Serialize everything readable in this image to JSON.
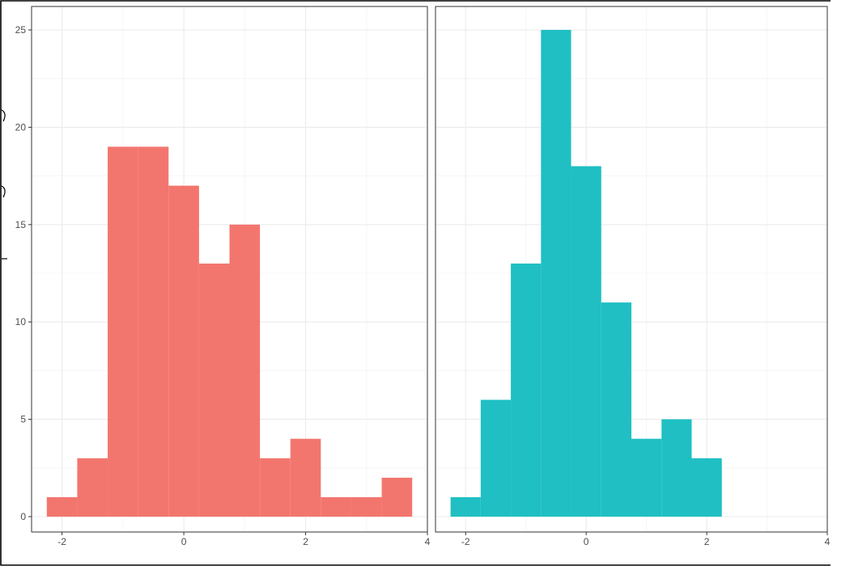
{
  "chart_data": {
    "type": "bar",
    "layout": "two facet panels side by side, shared y axis",
    "theme": "white background, light gray grid, thin dark panel border",
    "grid": true,
    "legend": "none",
    "bin_width": 0.5,
    "xlim": [
      -2.5,
      4
    ],
    "ylim": [
      0,
      25
    ],
    "x_ticks": [
      -2,
      0,
      2,
      4
    ],
    "y_ticks": [
      0,
      5,
      10,
      15,
      20,
      25
    ],
    "x_tick_labels": [
      "-2",
      "0",
      "2",
      "4"
    ],
    "y_tick_labels": [
      "0",
      "5",
      "10",
      "15",
      "20",
      "25"
    ],
    "title": "",
    "xlabel": "",
    "ylabel": "",
    "series": [
      {
        "color": "#F3766E",
        "bins": [
          {
            "x0": -2.25,
            "x1": -1.75,
            "count": 1
          },
          {
            "x0": -1.75,
            "x1": -1.25,
            "count": 3
          },
          {
            "x0": -1.25,
            "x1": -0.75,
            "count": 19
          },
          {
            "x0": -0.75,
            "x1": -0.25,
            "count": 19
          },
          {
            "x0": -0.25,
            "x1": 0.25,
            "count": 17
          },
          {
            "x0": 0.25,
            "x1": 0.75,
            "count": 13
          },
          {
            "x0": 0.75,
            "x1": 1.25,
            "count": 15
          },
          {
            "x0": 1.25,
            "x1": 1.75,
            "count": 3
          },
          {
            "x0": 1.75,
            "x1": 2.25,
            "count": 4
          },
          {
            "x0": 2.25,
            "x1": 2.75,
            "count": 1
          },
          {
            "x0": 2.75,
            "x1": 3.25,
            "count": 1
          },
          {
            "x0": 3.25,
            "x1": 3.75,
            "count": 2
          }
        ]
      },
      {
        "color": "#1FBFC3",
        "bins": [
          {
            "x0": -2.25,
            "x1": -1.75,
            "count": 1
          },
          {
            "x0": -1.75,
            "x1": -1.25,
            "count": 6
          },
          {
            "x0": -1.25,
            "x1": -0.75,
            "count": 13
          },
          {
            "x0": -0.75,
            "x1": -0.25,
            "count": 25
          },
          {
            "x0": -0.25,
            "x1": 0.25,
            "count": 18
          },
          {
            "x0": 0.25,
            "x1": 0.75,
            "count": 11
          },
          {
            "x0": 0.75,
            "x1": 1.25,
            "count": 4
          },
          {
            "x0": 1.25,
            "x1": 1.75,
            "count": 5
          },
          {
            "x0": 1.75,
            "x1": 2.25,
            "count": 3
          }
        ]
      }
    ]
  }
}
